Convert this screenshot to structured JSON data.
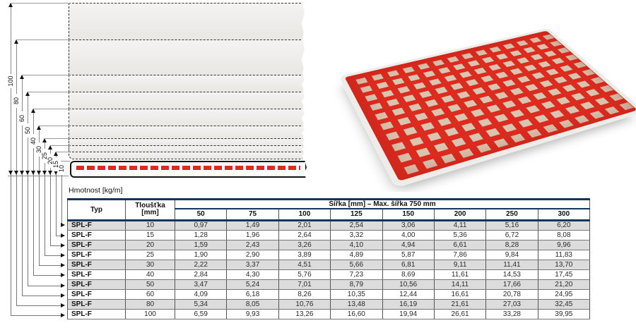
{
  "diagram": {
    "dimension_labels": [
      "100",
      "80",
      "60",
      "50",
      "40",
      "30",
      "25",
      "20",
      "15",
      "10"
    ]
  },
  "table": {
    "caption": "Hmotnost [kg/m]",
    "typ_header": "Typ",
    "thickness_header_line1": "Tloušťka",
    "thickness_header_line2": "[mm]",
    "width_header": "Šířka [mm] – Max. šířka 750 mm",
    "width_columns": [
      "50",
      "75",
      "100",
      "125",
      "150",
      "200",
      "250",
      "300"
    ],
    "rows": [
      {
        "typ": "SPL-F",
        "thickness": "10",
        "values": [
          "0,97",
          "1,49",
          "2,01",
          "2,54",
          "3,06",
          "4,11",
          "5,16",
          "6,20"
        ]
      },
      {
        "typ": "SPL-F",
        "thickness": "15",
        "values": [
          "1,28",
          "1,96",
          "2,64",
          "3,32",
          "4,00",
          "5,36",
          "6,72",
          "8,08"
        ]
      },
      {
        "typ": "SPL-F",
        "thickness": "20",
        "values": [
          "1,59",
          "2,43",
          "3,26",
          "4,10",
          "4,94",
          "6,61",
          "8,28",
          "9,96"
        ]
      },
      {
        "typ": "SPL-F",
        "thickness": "25",
        "values": [
          "1,90",
          "2,90",
          "3,89",
          "4,89",
          "5,87",
          "7,86",
          "9,84",
          "11,83"
        ]
      },
      {
        "typ": "SPL-F",
        "thickness": "30",
        "values": [
          "2,22",
          "3,37",
          "4,51",
          "5,66",
          "6,81",
          "9,11",
          "11,41",
          "13,70"
        ]
      },
      {
        "typ": "SPL-F",
        "thickness": "40",
        "values": [
          "2,84",
          "4,30",
          "5,76",
          "7,23",
          "8,69",
          "11,61",
          "14,53",
          "17,45"
        ]
      },
      {
        "typ": "SPL-F",
        "thickness": "50",
        "values": [
          "3,47",
          "5,24",
          "7,01",
          "8,79",
          "10,56",
          "14,11",
          "17,66",
          "21,20"
        ]
      },
      {
        "typ": "SPL-F",
        "thickness": "60",
        "values": [
          "4,09",
          "6,18",
          "8,26",
          "10,35",
          "12,44",
          "16,61",
          "20,78",
          "24,95"
        ]
      },
      {
        "typ": "SPL-F",
        "thickness": "80",
        "values": [
          "5,34",
          "8,05",
          "10,76",
          "13,48",
          "16,19",
          "21,61",
          "27,03",
          "32,45"
        ]
      },
      {
        "typ": "SPL-F",
        "thickness": "100",
        "values": [
          "6,59",
          "9,93",
          "13,26",
          "16,60",
          "19,94",
          "26,61",
          "33,28",
          "39,95"
        ]
      }
    ]
  },
  "colors": {
    "table_accent": "#14355e",
    "row_shade": "#dcdcdc",
    "product_red": "#dd2b20",
    "square_beige": "#d9c6b0"
  }
}
